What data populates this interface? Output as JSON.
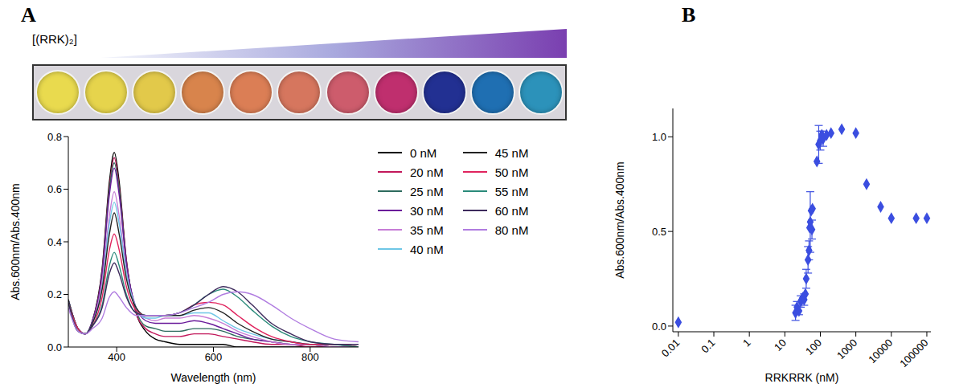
{
  "panel_labels": [
    "A",
    "B"
  ],
  "image": {
    "label": "[(RRK)₂]",
    "colors": [
      "#e9da4e",
      "#e6d44c",
      "#e2c94a",
      "#d8844c",
      "#db7e55",
      "#d6765e",
      "#cd5c6c",
      "#bf2f6e",
      "#223092",
      "#1f6fb2",
      "#2c92ba"
    ]
  },
  "chart_data": [
    {
      "type": "line",
      "xlabel": "Wavelength (nm)",
      "ylabel": "Abs.600nm/Abs.400nm",
      "x": [
        300,
        320,
        335,
        350,
        370,
        385,
        395,
        405,
        420,
        440,
        460,
        480,
        500,
        530,
        560,
        590,
        620,
        650,
        680,
        720,
        760,
        800,
        850,
        900
      ],
      "xlim": [
        300,
        900
      ],
      "xticks": [
        400,
        600,
        800
      ],
      "ylim": [
        0,
        0.8
      ],
      "yticks": [
        {
          "value": 0,
          "label": "0.0"
        },
        {
          "value": 0.2,
          "label": "0.2"
        },
        {
          "value": 0.4,
          "label": "0.4"
        },
        {
          "value": 0.6,
          "label": "0.6"
        },
        {
          "value": 0.8,
          "label": "0.8"
        }
      ],
      "grid": false,
      "legend": "right",
      "series": [
        {
          "name": "0 nM",
          "color": "#000000",
          "values": [
            0.18,
            0.07,
            0.05,
            0.1,
            0.3,
            0.63,
            0.74,
            0.63,
            0.33,
            0.13,
            0.06,
            0.03,
            0.02,
            0.01,
            0.01,
            0.01,
            0.01,
            0,
            0,
            0,
            0,
            0,
            0,
            0
          ]
        },
        {
          "name": "20 nM",
          "color": "#c2185b",
          "values": [
            0.18,
            0.07,
            0.05,
            0.1,
            0.29,
            0.61,
            0.72,
            0.61,
            0.33,
            0.13,
            0.07,
            0.05,
            0.04,
            0.04,
            0.05,
            0.05,
            0.04,
            0.03,
            0.02,
            0.01,
            0.01,
            0,
            0,
            0
          ]
        },
        {
          "name": "25 nM",
          "color": "#2e6b5e",
          "values": [
            0.18,
            0.07,
            0.05,
            0.1,
            0.28,
            0.6,
            0.7,
            0.6,
            0.32,
            0.14,
            0.08,
            0.07,
            0.06,
            0.06,
            0.07,
            0.07,
            0.06,
            0.04,
            0.03,
            0.02,
            0.01,
            0.01,
            0,
            0
          ]
        },
        {
          "name": "30 nM",
          "color": "#6a1b9a",
          "values": [
            0.18,
            0.07,
            0.05,
            0.1,
            0.28,
            0.58,
            0.68,
            0.58,
            0.32,
            0.15,
            0.1,
            0.09,
            0.09,
            0.09,
            0.1,
            0.09,
            0.07,
            0.05,
            0.03,
            0.02,
            0.01,
            0.01,
            0,
            0
          ]
        },
        {
          "name": "35 nM",
          "color": "#c77dd6",
          "values": [
            0.18,
            0.07,
            0.05,
            0.09,
            0.25,
            0.5,
            0.59,
            0.5,
            0.29,
            0.15,
            0.11,
            0.1,
            0.11,
            0.11,
            0.12,
            0.11,
            0.09,
            0.06,
            0.04,
            0.02,
            0.01,
            0.01,
            0,
            0
          ]
        },
        {
          "name": "40 nM",
          "color": "#6ec6e6",
          "values": [
            0.18,
            0.07,
            0.05,
            0.09,
            0.23,
            0.47,
            0.55,
            0.47,
            0.28,
            0.15,
            0.11,
            0.11,
            0.12,
            0.12,
            0.13,
            0.13,
            0.1,
            0.07,
            0.05,
            0.03,
            0.02,
            0.01,
            0.01,
            0
          ]
        },
        {
          "name": "45 nM",
          "color": "#222222",
          "values": [
            0.18,
            0.07,
            0.05,
            0.09,
            0.22,
            0.43,
            0.51,
            0.43,
            0.26,
            0.15,
            0.12,
            0.12,
            0.12,
            0.12,
            0.14,
            0.15,
            0.13,
            0.09,
            0.06,
            0.03,
            0.02,
            0.01,
            0.01,
            0
          ]
        },
        {
          "name": "50 nM",
          "color": "#e0245e",
          "values": [
            0.17,
            0.07,
            0.05,
            0.08,
            0.19,
            0.37,
            0.43,
            0.37,
            0.23,
            0.14,
            0.12,
            0.12,
            0.12,
            0.13,
            0.16,
            0.17,
            0.16,
            0.12,
            0.08,
            0.04,
            0.02,
            0.01,
            0.01,
            0
          ]
        },
        {
          "name": "55 nM",
          "color": "#2a8a7a",
          "values": [
            0.17,
            0.06,
            0.05,
            0.08,
            0.16,
            0.31,
            0.36,
            0.31,
            0.2,
            0.13,
            0.12,
            0.12,
            0.12,
            0.13,
            0.16,
            0.2,
            0.22,
            0.19,
            0.14,
            0.08,
            0.04,
            0.02,
            0.01,
            0
          ]
        },
        {
          "name": "60 nM",
          "color": "#3d2a5c",
          "values": [
            0.17,
            0.06,
            0.05,
            0.08,
            0.15,
            0.28,
            0.32,
            0.28,
            0.19,
            0.13,
            0.12,
            0.12,
            0.12,
            0.13,
            0.16,
            0.2,
            0.23,
            0.21,
            0.16,
            0.09,
            0.05,
            0.02,
            0.01,
            0.01
          ]
        },
        {
          "name": "80 nM",
          "color": "#b07ce0",
          "values": [
            0.15,
            0.06,
            0.05,
            0.07,
            0.11,
            0.19,
            0.21,
            0.19,
            0.15,
            0.12,
            0.12,
            0.12,
            0.12,
            0.13,
            0.15,
            0.17,
            0.2,
            0.21,
            0.2,
            0.16,
            0.11,
            0.07,
            0.03,
            0.02
          ]
        }
      ]
    },
    {
      "type": "scatter",
      "xlabel": "RRKRRK (nM)",
      "ylabel": "Abs.600nm/Abs.400nm",
      "log": "x",
      "grid": false,
      "marker": "diamond",
      "color": "#3b4ee0",
      "xlim": [
        0.007,
        130000
      ],
      "xticks": [
        0.01,
        0.1,
        1,
        10,
        100,
        1000,
        10000,
        100000
      ],
      "ylim": [
        -0.03,
        1.15
      ],
      "yticks": [
        {
          "value": 0,
          "label": "0.0"
        },
        {
          "value": 0.5,
          "label": "0.5"
        },
        {
          "value": 1,
          "label": "1.0"
        }
      ],
      "x": [
        0.01,
        20,
        22,
        25,
        28,
        30,
        32,
        35,
        38,
        40,
        45,
        48,
        50,
        52,
        55,
        58,
        60,
        80,
        90,
        100,
        110,
        120,
        150,
        200,
        400,
        1000,
        2000,
        5000,
        10000,
        50000,
        100000
      ],
      "values": [
        0.02,
        0.07,
        0.1,
        0.08,
        0.13,
        0.14,
        0.15,
        0.14,
        0.17,
        0.25,
        0.35,
        0.4,
        0.52,
        0.55,
        0.61,
        0.51,
        0.62,
        0.87,
        0.96,
        0.98,
        1.01,
        0.99,
        1.01,
        1.02,
        1.04,
        1.02,
        0.75,
        0.63,
        0.57,
        0.57,
        0.57
      ],
      "errors": [
        null,
        0.04,
        0.03,
        0.02,
        0.03,
        null,
        null,
        0.03,
        null,
        0.05,
        0.07,
        0.05,
        null,
        0.16,
        null,
        0.05,
        null,
        null,
        0.1,
        0.05,
        null,
        0.04,
        null,
        null,
        null,
        null,
        null,
        null,
        null,
        null,
        null
      ]
    }
  ]
}
